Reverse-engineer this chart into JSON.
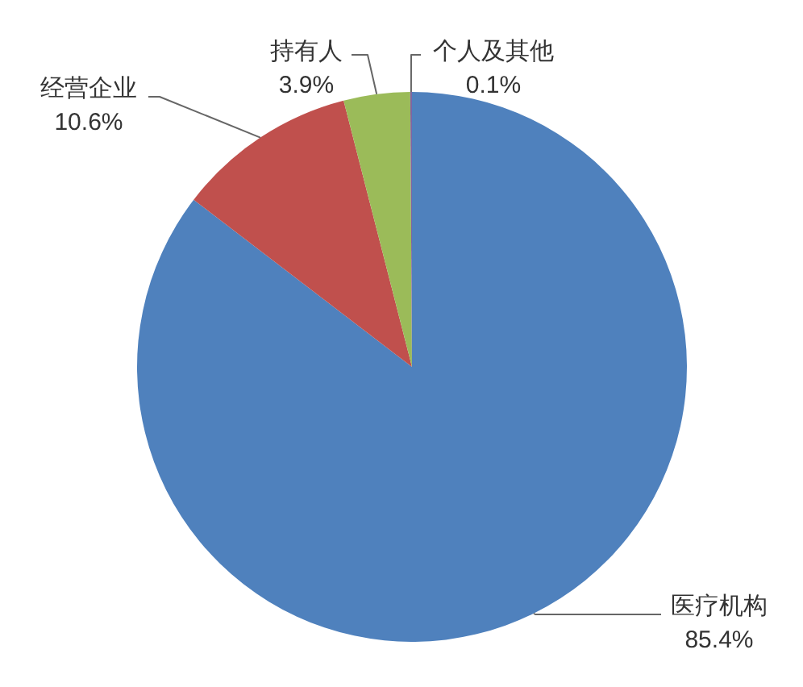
{
  "chart_data": {
    "type": "pie",
    "categories": [
      "医疗机构",
      "经营企业",
      "持有人",
      "个人及其他"
    ],
    "values": [
      85.4,
      10.6,
      3.9,
      0.1
    ],
    "colors": [
      "#4f81bd",
      "#c0504d",
      "#9bbb59",
      "#8064a2"
    ],
    "value_labels": [
      "85.4%",
      "10.6%",
      "3.9%",
      "0.1%"
    ]
  }
}
